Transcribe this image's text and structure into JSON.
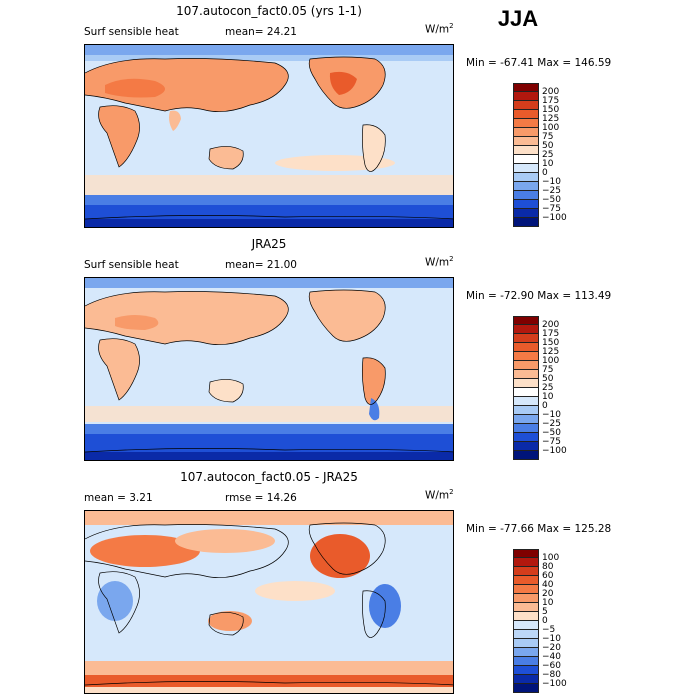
{
  "season": "JJA",
  "panels": [
    {
      "title": "107.autocon_fact0.05 (yrs 1-1)",
      "left_label": "Surf sensible heat",
      "mid_label": "mean=  24.21",
      "units_base": "W/m",
      "units_exp": "2",
      "minmax": "Min = -67.41 Max = 146.59",
      "kind": "model",
      "levels": [
        "200",
        "175",
        "150",
        "125",
        "100",
        "75",
        "50",
        "25",
        "10",
        "0",
        "−10",
        "−25",
        "−50",
        "−75",
        "−100"
      ],
      "colors": [
        "#7f0000",
        "#b2180e",
        "#d43d1c",
        "#e95b2b",
        "#f47a45",
        "#f89a69",
        "#fbbb94",
        "#fde0c8",
        "#ffffff",
        "#d6e8fb",
        "#a9cbf5",
        "#7aa7ee",
        "#4a7ee5",
        "#1e4fd6",
        "#0a2aa8",
        "#00147a"
      ]
    },
    {
      "title": "JRA25",
      "left_label": "Surf sensible heat",
      "mid_label": "mean=  21.00",
      "units_base": "W/m",
      "units_exp": "2",
      "minmax": "Min = -72.90 Max = 113.49",
      "kind": "obs",
      "levels": [
        "200",
        "175",
        "150",
        "125",
        "100",
        "75",
        "50",
        "25",
        "10",
        "0",
        "−10",
        "−25",
        "−50",
        "−75",
        "−100"
      ],
      "colors": [
        "#7f0000",
        "#b2180e",
        "#d43d1c",
        "#e95b2b",
        "#f47a45",
        "#f89a69",
        "#fbbb94",
        "#fde0c8",
        "#ffffff",
        "#d6e8fb",
        "#a9cbf5",
        "#7aa7ee",
        "#4a7ee5",
        "#1e4fd6",
        "#0a2aa8",
        "#00147a"
      ]
    },
    {
      "title": "107.autocon_fact0.05 - JRA25",
      "left_label": "mean =   3.21",
      "mid_label": "rmse =  14.26",
      "units_base": "W/m",
      "units_exp": "2",
      "minmax": "Min = -77.66 Max = 125.28",
      "kind": "diff",
      "levels": [
        "100",
        "80",
        "60",
        "40",
        "20",
        "10",
        "5",
        "0",
        "−5",
        "−10",
        "−20",
        "−40",
        "−60",
        "−80",
        "−100"
      ],
      "colors": [
        "#7f0000",
        "#b2180e",
        "#d43d1c",
        "#e95b2b",
        "#f47a45",
        "#f89a69",
        "#fbbb94",
        "#fde0c8",
        "#d6e8fb",
        "#bcd7f7",
        "#a9cbf5",
        "#7aa7ee",
        "#4a7ee5",
        "#1e4fd6",
        "#0a2aa8",
        "#00147a"
      ]
    }
  ]
}
